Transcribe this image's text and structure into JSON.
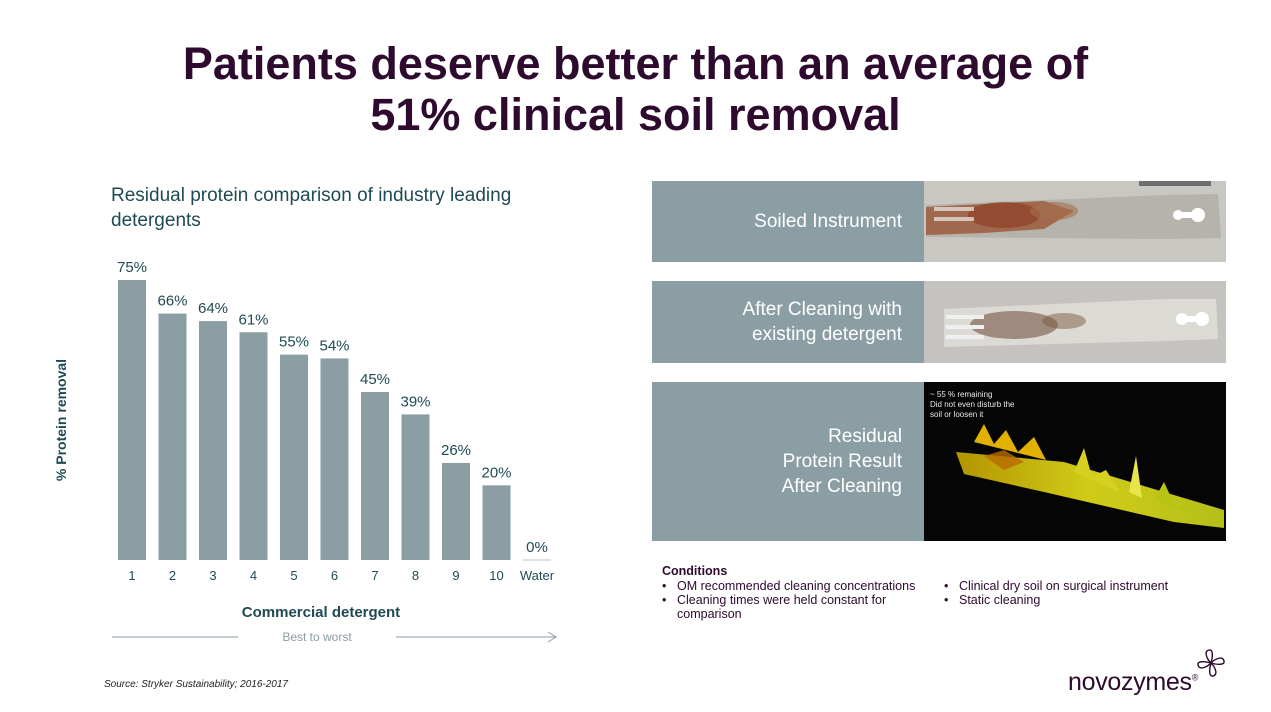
{
  "title": {
    "line1": "Patients deserve better than an average of",
    "line2": "51% clinical soil removal"
  },
  "chart_data": {
    "type": "bar",
    "title": "Residual protein comparison of industry leading detergents",
    "categories": [
      "1",
      "2",
      "3",
      "4",
      "5",
      "6",
      "7",
      "8",
      "9",
      "10",
      "Water"
    ],
    "values": [
      75,
      66,
      64,
      61,
      55,
      54,
      45,
      39,
      26,
      20,
      0
    ],
    "data_labels": [
      "75%",
      "66%",
      "64%",
      "61%",
      "55%",
      "54%",
      "45%",
      "39%",
      "26%",
      "20%",
      "0%"
    ],
    "xlabel": "Commercial detergent",
    "ylabel": "% Protein removal",
    "ylim": [
      0,
      75
    ],
    "grid": false,
    "bar_color": "#8b9ea4",
    "arrow_label": "Best to worst"
  },
  "source": "Source: Stryker Sustainability; 2016-2017",
  "panels": [
    {
      "label_lines": [
        "Soiled Instrument"
      ]
    },
    {
      "label_lines": [
        "After Cleaning with",
        "existing detergent"
      ]
    },
    {
      "label_lines": [
        "Residual",
        "Protein Result",
        "After Cleaning"
      ],
      "caption_lines": [
        "~ 55 % remaining",
        "Did not even disturb the",
        "soil or loosen it"
      ]
    }
  ],
  "conditions": {
    "heading": "Conditions",
    "left": [
      "OM recommended cleaning concentrations",
      "Cleaning times were held constant for comparison"
    ],
    "right": [
      "Clinical dry soil on surgical instrument",
      "Static cleaning"
    ]
  },
  "logo": {
    "text": "novozymes",
    "mark": "®"
  },
  "colors": {
    "title": "#2d0a2e",
    "panel": "#8b9ea4",
    "chart_text": "#1f4a55"
  }
}
